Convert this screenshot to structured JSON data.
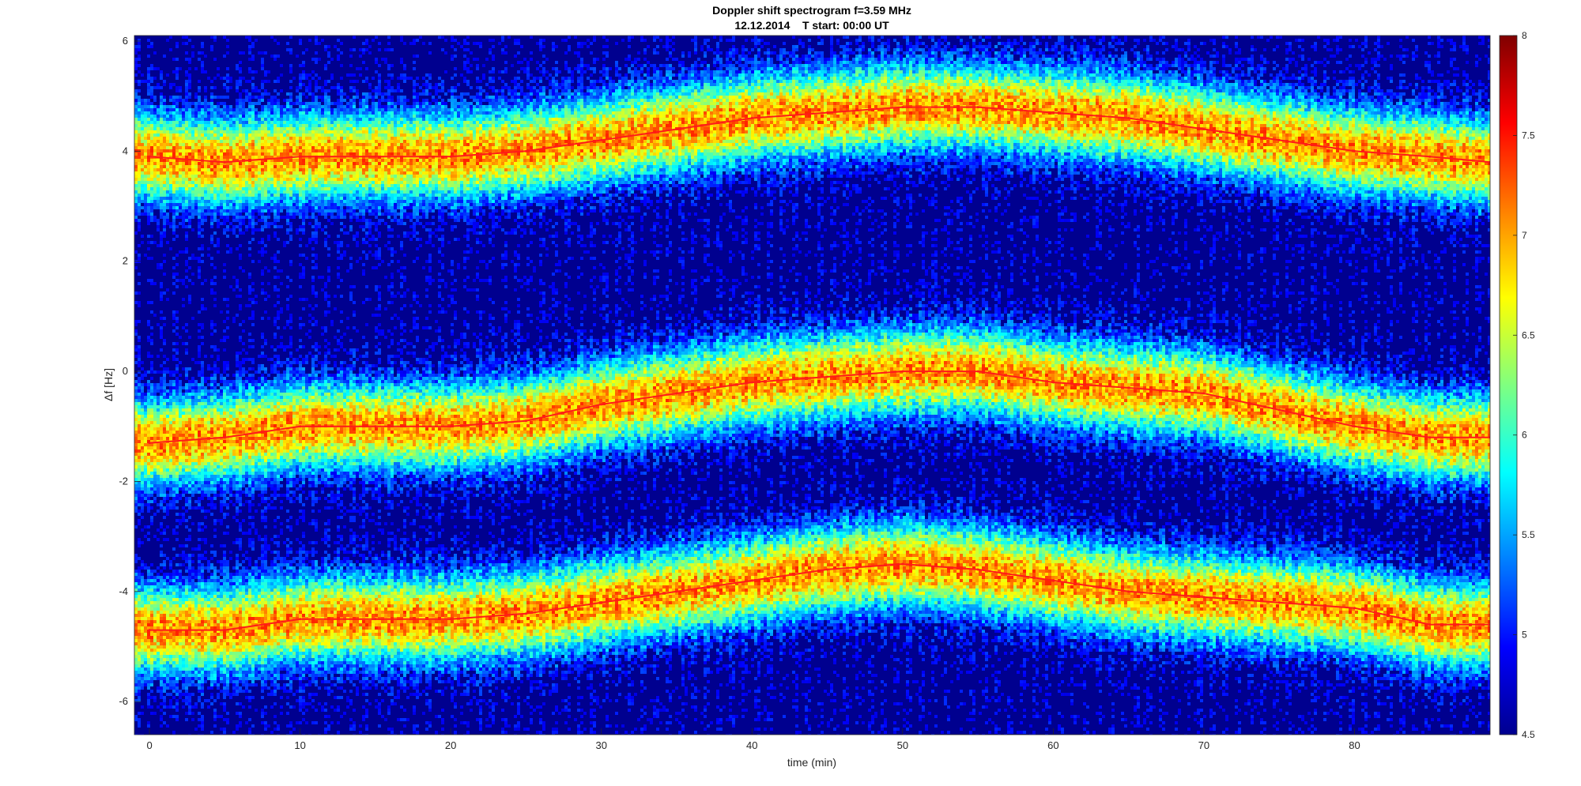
{
  "chart_data": {
    "type": "heatmap",
    "title": "Doppler shift spectrogram f=3.59 MHz",
    "subtitle": "12.12.2014    T start: 00:00 UT",
    "xlabel": "time (min)",
    "ylabel": "Δf [Hz]",
    "xlim": [
      -1,
      89
    ],
    "ylim": [
      -6.6,
      6.1
    ],
    "xticks": [
      0,
      10,
      20,
      30,
      40,
      50,
      60,
      70,
      80
    ],
    "yticks": [
      6,
      4,
      2,
      0,
      -2,
      -4,
      -6
    ],
    "colormap": "jet",
    "colorbar": {
      "range": [
        4.5,
        8
      ],
      "ticks": [
        "8",
        "7.5",
        "7",
        "6.5",
        "6",
        "5.5",
        "5",
        "4.5"
      ]
    },
    "grid": false,
    "background_color": "#00008f",
    "series": [
      {
        "x": [
          0,
          5,
          10,
          15,
          20,
          25,
          30,
          35,
          40,
          45,
          50,
          55,
          60,
          65,
          70,
          75,
          80,
          85,
          89
        ],
        "y": [
          3.9,
          3.8,
          3.9,
          3.9,
          3.9,
          4.0,
          4.2,
          4.4,
          4.6,
          4.7,
          4.8,
          4.8,
          4.7,
          4.6,
          4.4,
          4.2,
          4.0,
          3.9,
          3.8
        ]
      },
      {
        "x": [
          0,
          5,
          10,
          15,
          20,
          25,
          30,
          35,
          40,
          45,
          50,
          55,
          60,
          65,
          70,
          75,
          80,
          85,
          89
        ],
        "y": [
          -1.3,
          -1.2,
          -1.0,
          -1.0,
          -1.0,
          -0.9,
          -0.6,
          -0.4,
          -0.2,
          -0.1,
          0.0,
          0.0,
          -0.2,
          -0.3,
          -0.4,
          -0.7,
          -1.0,
          -1.2,
          -1.2
        ]
      },
      {
        "x": [
          0,
          5,
          10,
          15,
          20,
          25,
          30,
          35,
          40,
          45,
          50,
          55,
          60,
          65,
          70,
          75,
          80,
          85,
          89
        ],
        "y": [
          -4.7,
          -4.7,
          -4.5,
          -4.5,
          -4.5,
          -4.4,
          -4.2,
          -4.0,
          -3.8,
          -3.6,
          -3.5,
          -3.6,
          -3.8,
          -4.0,
          -4.1,
          -4.2,
          -4.3,
          -4.6,
          -4.6
        ]
      }
    ]
  }
}
